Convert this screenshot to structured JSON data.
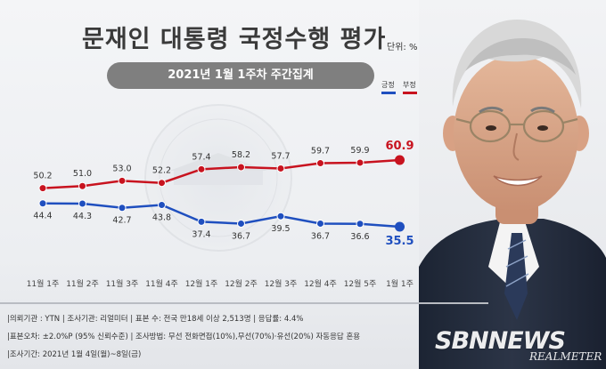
{
  "header": {
    "title": "문재인 대통령 국정수행 평가",
    "unit": "단위: %",
    "subtitle": "2021년 1월 1주차 주간집계"
  },
  "legend": [
    {
      "name": "긍정",
      "color": "#1f4fbf"
    },
    {
      "name": "부정",
      "color": "#c8131f"
    }
  ],
  "chart_data": {
    "type": "line",
    "categories": [
      "11월 1주",
      "11월 2주",
      "11월 3주",
      "11월 4주",
      "12월 1주",
      "12월 2주",
      "12월 3주",
      "12월 4주",
      "12월 5주",
      "1월 1주"
    ],
    "series": [
      {
        "name": "부정",
        "color": "#c8131f",
        "values": [
          50.2,
          51.0,
          53.0,
          52.2,
          57.4,
          58.2,
          57.7,
          59.7,
          59.9,
          60.9
        ]
      },
      {
        "name": "긍정",
        "color": "#1f4fbf",
        "values": [
          44.4,
          44.3,
          42.7,
          43.8,
          37.4,
          36.7,
          39.5,
          36.7,
          36.6,
          35.5
        ]
      }
    ],
    "labels": {
      "부정": [
        "50.2",
        "51.0",
        "53.0",
        "52.2",
        "57.4",
        "58.2",
        "57.7",
        "59.7",
        "59.9",
        "60.9"
      ],
      "긍정": [
        "44.4",
        "44.3",
        "42.7",
        "43.8",
        "37.4",
        "36.7",
        "39.5",
        "36.7",
        "36.6",
        "35.5"
      ]
    },
    "title": "문재인 대통령 국정수행 평가",
    "xlabel": "",
    "ylabel": "",
    "grid": false,
    "legend_position": "top-right"
  },
  "footer": {
    "line1": "|의뢰기관 : YTN   |  조사기관: 리얼미터   |  표본 수: 전국 만18세 이상 2,513명   |  응답률: 4.4%",
    "line2": "|표본오차: ±2.0%P (95% 신뢰수준)   |  조사방법: 무선 전화면접(10%),무선(70%)·유선(20%) 자동응답 혼용",
    "line3": "|조사기간: 2021년 1월 4일(월)~8일(금)"
  },
  "watermark": {
    "brand": "SBNNEWS",
    "pollster": "REALMETER"
  }
}
